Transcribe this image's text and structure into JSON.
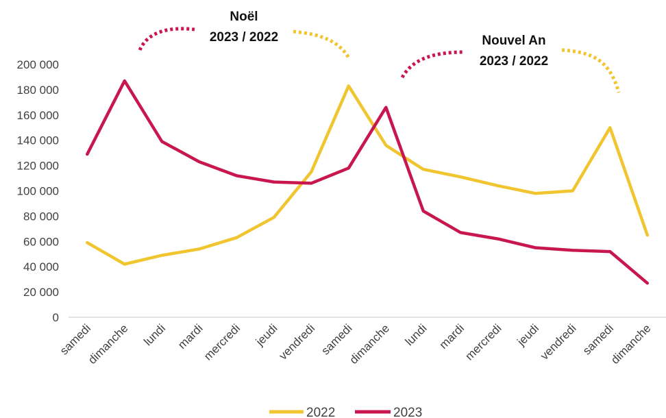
{
  "chart_data": {
    "type": "line",
    "categories": [
      "samedi",
      "dimanche",
      "lundi",
      "mardi",
      "mercredi",
      "jeudi",
      "vendredi",
      "samedi",
      "dimanche",
      "lundi",
      "mardi",
      "mercredi",
      "jeudi",
      "vendredi",
      "samedi",
      "dimanche"
    ],
    "series": [
      {
        "name": "2022",
        "color": "#F0C530",
        "values": [
          59000,
          42000,
          49000,
          54000,
          63000,
          79000,
          115000,
          183000,
          136000,
          117000,
          111000,
          104000,
          98000,
          100000,
          150000,
          65000
        ]
      },
      {
        "name": "2023",
        "color": "#C8174F",
        "values": [
          129000,
          187000,
          139000,
          123000,
          112000,
          107000,
          106000,
          118000,
          166000,
          84000,
          67000,
          62000,
          55000,
          53000,
          52000,
          27000
        ]
      }
    ],
    "ylim": [
      0,
      200000
    ],
    "yticks": [
      0,
      20000,
      40000,
      60000,
      80000,
      100000,
      120000,
      140000,
      160000,
      180000,
      200000
    ],
    "ytick_labels": [
      "0",
      "20 000",
      "40 000",
      "60 000",
      "80 000",
      "100 000",
      "120 000",
      "140 000",
      "160 000",
      "180 000",
      "200 000"
    ],
    "title": "",
    "xlabel": "",
    "ylabel": "",
    "grid": false,
    "legend_position": "bottom",
    "annotations": [
      {
        "line1": "Noël",
        "line2": "2023 / 2022"
      },
      {
        "line1": "Nouvel An",
        "line2": "2023 / 2022"
      }
    ]
  }
}
